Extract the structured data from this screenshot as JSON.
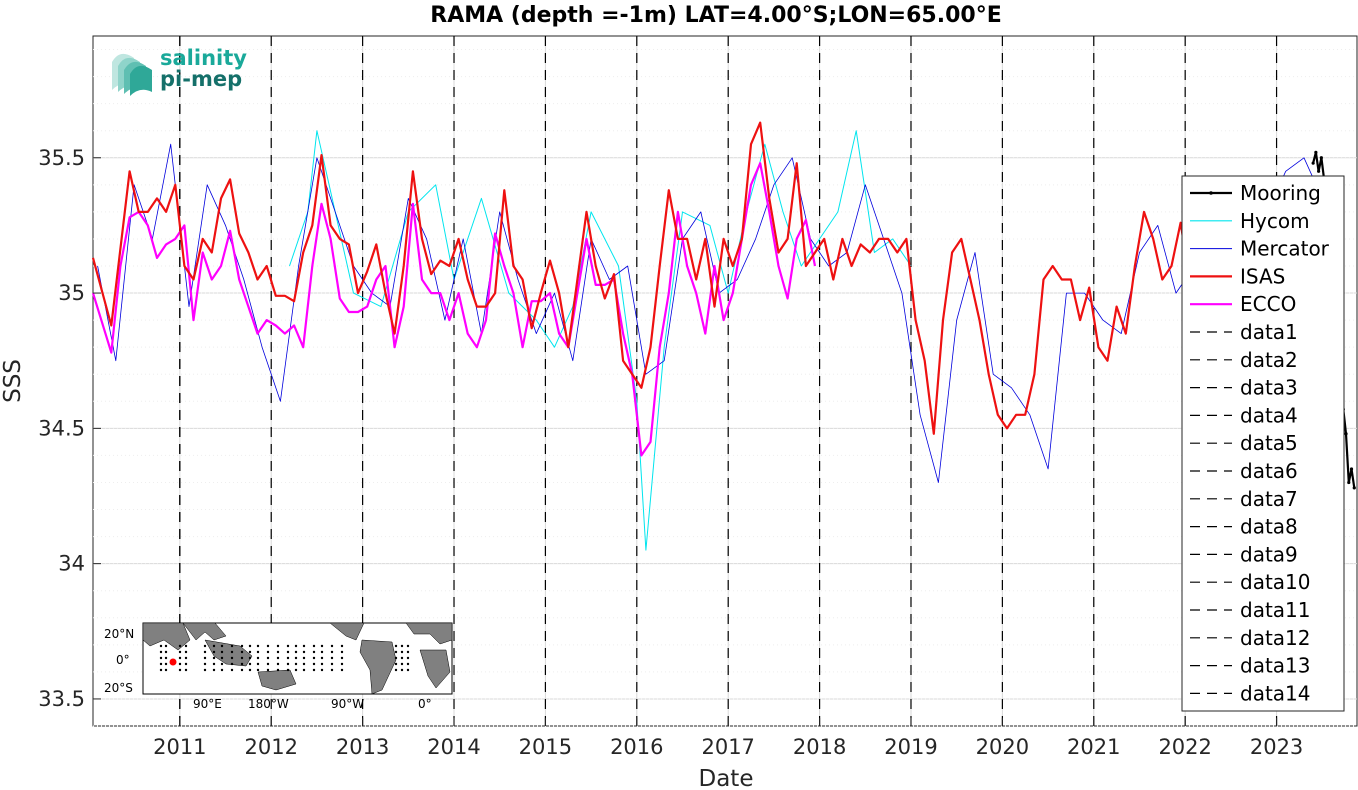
{
  "chart_data": {
    "type": "line",
    "title": "RAMA (depth =-1m) LAT=4.00°S;LON=65.00°E",
    "xlabel": "Date",
    "ylabel": "SSS",
    "xlim": [
      2010.05,
      2023.88
    ],
    "ylim": [
      33.4,
      35.95
    ],
    "x_ticks": [
      2011,
      2012,
      2013,
      2014,
      2015,
      2016,
      2017,
      2018,
      2019,
      2020,
      2021,
      2022,
      2023
    ],
    "y_ticks": [
      33.5,
      34,
      34.5,
      35,
      35.5
    ],
    "y_tick_labels": [
      "33.5",
      "34",
      "34.5",
      "35",
      "35.5"
    ],
    "grid": true,
    "legend_position": "right",
    "vertical_dashed_lines": [
      2011,
      2012,
      2013,
      2014,
      2015,
      2016,
      2017,
      2018,
      2019,
      2020,
      2021,
      2022,
      2023,
      2011
    ],
    "series": [
      {
        "name": "Mooring",
        "color": "#000000",
        "x": [
          2023.4,
          2023.43,
          2023.46,
          2023.49,
          2023.52,
          2023.55,
          2023.58,
          2023.61,
          2023.64,
          2023.67,
          2023.7,
          2023.73,
          2023.76,
          2023.79,
          2023.82,
          2023.85
        ],
        "y": [
          35.48,
          35.52,
          35.45,
          35.5,
          35.42,
          35.38,
          35.2,
          34.85,
          34.4,
          33.75,
          34.2,
          34.57,
          34.48,
          34.3,
          34.35,
          34.28
        ]
      },
      {
        "name": "Hycom",
        "color": "#00e5ee",
        "x": [
          2012.2,
          2012.4,
          2012.5,
          2012.7,
          2012.9,
          2013.2,
          2013.5,
          2013.8,
          2014.0,
          2014.3,
          2014.6,
          2014.9,
          2015.1,
          2015.3,
          2015.5,
          2015.8,
          2016.0,
          2016.1,
          2016.3,
          2016.5,
          2016.8,
          2017.0,
          2017.2,
          2017.4,
          2017.6,
          2017.8,
          2018.0,
          2018.2,
          2018.4,
          2018.6,
          2018.8,
          2019.0
        ],
        "y": [
          35.1,
          35.3,
          35.6,
          35.3,
          35.0,
          34.95,
          35.3,
          35.4,
          35.05,
          35.35,
          35.0,
          34.9,
          34.8,
          34.95,
          35.3,
          35.1,
          34.6,
          34.05,
          34.8,
          35.3,
          35.25,
          35.0,
          35.3,
          35.55,
          35.3,
          35.1,
          35.2,
          35.3,
          35.6,
          35.15,
          35.2,
          35.1
        ]
      },
      {
        "name": "Mercator",
        "color": "#0000dd",
        "x": [
          2010.1,
          2010.3,
          2010.5,
          2010.7,
          2010.9,
          2011.1,
          2011.3,
          2011.5,
          2011.7,
          2011.9,
          2012.1,
          2012.3,
          2012.5,
          2012.7,
          2012.9,
          2013.1,
          2013.3,
          2013.5,
          2013.7,
          2013.9,
          2014.1,
          2014.3,
          2014.5,
          2014.7,
          2014.9,
          2015.1,
          2015.3,
          2015.5,
          2015.7,
          2015.9,
          2016.1,
          2016.3,
          2016.5,
          2016.7,
          2016.9,
          2017.1,
          2017.3,
          2017.5,
          2017.7,
          2017.9,
          2018.1,
          2018.3,
          2018.5,
          2018.7,
          2018.9,
          2019.1,
          2019.3,
          2019.5,
          2019.7,
          2019.9,
          2020.1,
          2020.3,
          2020.5,
          2020.7,
          2020.9,
          2021.1,
          2021.3,
          2021.5,
          2021.7,
          2021.9,
          2022.1,
          2022.3,
          2022.5,
          2022.7,
          2022.9,
          2023.1,
          2023.3,
          2023.5
        ],
        "y": [
          35.1,
          34.75,
          35.4,
          35.2,
          35.55,
          34.95,
          35.4,
          35.25,
          35.05,
          34.8,
          34.6,
          35.1,
          35.5,
          35.3,
          35.1,
          35.0,
          34.95,
          35.35,
          35.2,
          34.9,
          35.2,
          34.85,
          35.3,
          35.05,
          34.85,
          35.0,
          34.75,
          35.2,
          35.05,
          35.1,
          34.7,
          34.75,
          35.2,
          35.3,
          35.0,
          35.05,
          35.2,
          35.4,
          35.5,
          35.2,
          35.1,
          35.15,
          35.4,
          35.2,
          35.0,
          34.55,
          34.3,
          34.9,
          35.15,
          34.7,
          34.65,
          34.55,
          34.35,
          35.0,
          35.0,
          34.9,
          34.85,
          35.15,
          35.25,
          35.0,
          35.1,
          35.4,
          35.35,
          35.15,
          35.3,
          35.45,
          35.5,
          35.35
        ]
      },
      {
        "name": "ISAS",
        "color": "#ee1111",
        "x": [
          2010.05,
          2010.25,
          2010.45,
          2010.55,
          2010.65,
          2010.75,
          2010.85,
          2010.95,
          2011.05,
          2011.15,
          2011.25,
          2011.35,
          2011.45,
          2011.55,
          2011.65,
          2011.75,
          2011.85,
          2011.95,
          2012.05,
          2012.15,
          2012.25,
          2012.35,
          2012.45,
          2012.55,
          2012.65,
          2012.75,
          2012.85,
          2012.95,
          2013.05,
          2013.15,
          2013.25,
          2013.35,
          2013.45,
          2013.55,
          2013.65,
          2013.75,
          2013.85,
          2013.95,
          2014.05,
          2014.15,
          2014.25,
          2014.35,
          2014.45,
          2014.55,
          2014.65,
          2014.75,
          2014.85,
          2014.95,
          2015.05,
          2015.15,
          2015.25,
          2015.35,
          2015.45,
          2015.55,
          2015.65,
          2015.75,
          2015.85,
          2015.95,
          2016.05,
          2016.15,
          2016.25,
          2016.35,
          2016.45,
          2016.55,
          2016.65,
          2016.75,
          2016.85,
          2016.95,
          2017.05,
          2017.15,
          2017.25,
          2017.35,
          2017.45,
          2017.55,
          2017.65,
          2017.75,
          2017.85,
          2017.95,
          2018.05,
          2018.15,
          2018.25,
          2018.35,
          2018.45,
          2018.55,
          2018.65,
          2018.75,
          2018.85,
          2018.95,
          2019.05,
          2019.15,
          2019.25,
          2019.35,
          2019.45,
          2019.55,
          2019.65,
          2019.75,
          2019.85,
          2019.95,
          2020.05,
          2020.15,
          2020.25,
          2020.35,
          2020.45,
          2020.55,
          2020.65,
          2020.75,
          2020.85,
          2020.95,
          2021.05,
          2021.15,
          2021.25,
          2021.35,
          2021.45,
          2021.55,
          2021.65,
          2021.75,
          2021.85,
          2021.95,
          2022.0
        ],
        "y": [
          35.13,
          34.88,
          35.45,
          35.3,
          35.3,
          35.35,
          35.3,
          35.4,
          35.1,
          35.05,
          35.2,
          35.15,
          35.35,
          35.42,
          35.22,
          35.15,
          35.05,
          35.1,
          34.99,
          34.99,
          34.97,
          35.15,
          35.25,
          35.51,
          35.25,
          35.2,
          35.18,
          35.0,
          35.08,
          35.18,
          35.0,
          34.85,
          35.1,
          35.45,
          35.2,
          35.07,
          35.12,
          35.1,
          35.2,
          35.05,
          34.95,
          34.95,
          35.0,
          35.38,
          35.1,
          35.05,
          34.87,
          35.0,
          35.12,
          35.0,
          34.8,
          35.05,
          35.3,
          35.1,
          34.98,
          35.07,
          34.75,
          34.7,
          34.65,
          34.8,
          35.1,
          35.38,
          35.2,
          35.2,
          35.05,
          35.2,
          34.95,
          35.2,
          35.1,
          35.2,
          35.55,
          35.63,
          35.35,
          35.15,
          35.2,
          35.48,
          35.1,
          35.15,
          35.2,
          35.05,
          35.2,
          35.1,
          35.18,
          35.15,
          35.2,
          35.2,
          35.15,
          35.2,
          34.9,
          34.75,
          34.48,
          34.9,
          35.15,
          35.2,
          35.05,
          34.9,
          34.7,
          34.55,
          34.5,
          34.55,
          34.55,
          34.7,
          35.05,
          35.1,
          35.05,
          35.05,
          34.9,
          35.02,
          34.8,
          34.75,
          34.95,
          34.85,
          35.1,
          35.3,
          35.2,
          35.05,
          35.1,
          35.26,
          35.15
        ]
      },
      {
        "name": "ECCO",
        "color": "#ff00ff",
        "x": [
          2010.05,
          2010.25,
          2010.35,
          2010.45,
          2010.55,
          2010.65,
          2010.75,
          2010.85,
          2010.95,
          2011.05,
          2011.15,
          2011.25,
          2011.35,
          2011.45,
          2011.55,
          2011.65,
          2011.75,
          2011.85,
          2011.95,
          2012.05,
          2012.15,
          2012.25,
          2012.35,
          2012.45,
          2012.55,
          2012.65,
          2012.75,
          2012.85,
          2012.95,
          2013.05,
          2013.15,
          2013.25,
          2013.35,
          2013.45,
          2013.55,
          2013.65,
          2013.75,
          2013.85,
          2013.95,
          2014.05,
          2014.15,
          2014.25,
          2014.35,
          2014.45,
          2014.55,
          2014.65,
          2014.75,
          2014.85,
          2014.95,
          2015.05,
          2015.15,
          2015.25,
          2015.35,
          2015.45,
          2015.55,
          2015.65,
          2015.75,
          2015.85,
          2015.95,
          2016.05,
          2016.15,
          2016.25,
          2016.35,
          2016.45,
          2016.55,
          2016.65,
          2016.75,
          2016.85,
          2016.95,
          2017.05,
          2017.15,
          2017.25,
          2017.35,
          2017.45,
          2017.55,
          2017.65,
          2017.75,
          2017.85,
          2017.95
        ],
        "y": [
          35.0,
          34.78,
          35.1,
          35.28,
          35.3,
          35.25,
          35.13,
          35.18,
          35.2,
          35.25,
          34.9,
          35.15,
          35.05,
          35.1,
          35.23,
          35.05,
          34.95,
          34.85,
          34.9,
          34.88,
          34.85,
          34.88,
          34.8,
          35.1,
          35.33,
          35.2,
          34.98,
          34.93,
          34.93,
          34.95,
          35.05,
          35.1,
          34.8,
          34.95,
          35.33,
          35.05,
          35.0,
          35.0,
          34.9,
          35.0,
          34.85,
          34.8,
          34.9,
          35.22,
          35.1,
          35.0,
          34.8,
          34.97,
          34.97,
          35.0,
          34.85,
          34.8,
          35.0,
          35.2,
          35.03,
          35.03,
          35.05,
          34.85,
          34.7,
          34.4,
          34.45,
          34.8,
          35.0,
          35.3,
          35.1,
          35.0,
          34.85,
          35.1,
          34.9,
          35.0,
          35.2,
          35.4,
          35.48,
          35.3,
          35.1,
          34.98,
          35.2,
          35.27,
          35.1
        ]
      },
      {
        "name": "data1",
        "color": "#000000",
        "x": [],
        "y": []
      },
      {
        "name": "data2",
        "color": "#000000",
        "x": [],
        "y": []
      },
      {
        "name": "data3",
        "color": "#000000",
        "x": [],
        "y": []
      },
      {
        "name": "data4",
        "color": "#000000",
        "x": [],
        "y": []
      },
      {
        "name": "data5",
        "color": "#000000",
        "x": [],
        "y": []
      },
      {
        "name": "data6",
        "color": "#000000",
        "x": [],
        "y": []
      },
      {
        "name": "data7",
        "color": "#000000",
        "x": [],
        "y": []
      },
      {
        "name": "data8",
        "color": "#000000",
        "x": [],
        "y": []
      },
      {
        "name": "data9",
        "color": "#000000",
        "x": [],
        "y": []
      },
      {
        "name": "data10",
        "color": "#000000",
        "x": [],
        "y": []
      },
      {
        "name": "data11",
        "color": "#000000",
        "x": [],
        "y": []
      },
      {
        "name": "data12",
        "color": "#000000",
        "x": [],
        "y": []
      },
      {
        "name": "data13",
        "color": "#000000",
        "x": [],
        "y": []
      },
      {
        "name": "data14",
        "color": "#000000",
        "x": [],
        "y": []
      }
    ]
  },
  "logo": {
    "line1": "salinity",
    "line2": "pi-mep",
    "color1": "#1aa99a",
    "color2": "#15706a"
  },
  "inset_map": {
    "y_labels": [
      "20°N",
      "0°",
      "20°S"
    ],
    "x_labels": [
      "90°E",
      "180°W",
      "90°W",
      "0°"
    ],
    "ocean_color": "#ffffff",
    "land_color": "#808080",
    "marker_color": "#ff0000"
  }
}
